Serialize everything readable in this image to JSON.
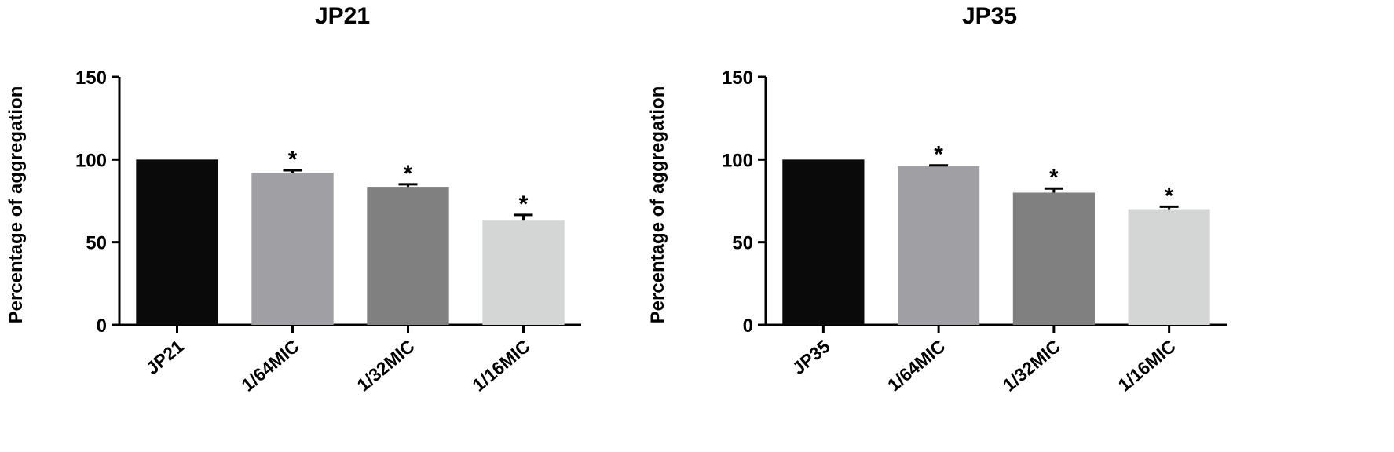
{
  "chart_data": [
    {
      "type": "bar",
      "title": "JP21",
      "y_label": "Percentage of aggregation",
      "categories": [
        "JP21",
        "1/64MIC",
        "1/32MIC",
        "1/16MIC"
      ],
      "values": [
        100,
        92,
        83.5,
        63.5
      ],
      "errors": [
        0,
        1.5,
        1.5,
        3
      ],
      "colors": [
        "#0a0a0a",
        "#a0a0a4",
        "#808080",
        "#d4d6d6"
      ],
      "annotations": [
        null,
        "*",
        "*",
        "*"
      ],
      "ylim": [
        0,
        150
      ],
      "yticks": [
        0,
        50,
        100,
        150
      ]
    },
    {
      "type": "bar",
      "title": "JP35",
      "y_label": "Percentage of aggregation",
      "categories": [
        "JP35",
        "1/64MIC",
        "1/32MIC",
        "1/16MIC"
      ],
      "values": [
        100,
        96,
        80,
        70
      ],
      "errors": [
        0,
        0.5,
        2.5,
        1.5
      ],
      "colors": [
        "#0a0a0a",
        "#a0a0a4",
        "#808080",
        "#d4d6d6"
      ],
      "annotations": [
        null,
        "*",
        "*",
        "*"
      ],
      "ylim": [
        0,
        150
      ],
      "yticks": [
        0,
        50,
        100,
        150
      ]
    }
  ]
}
